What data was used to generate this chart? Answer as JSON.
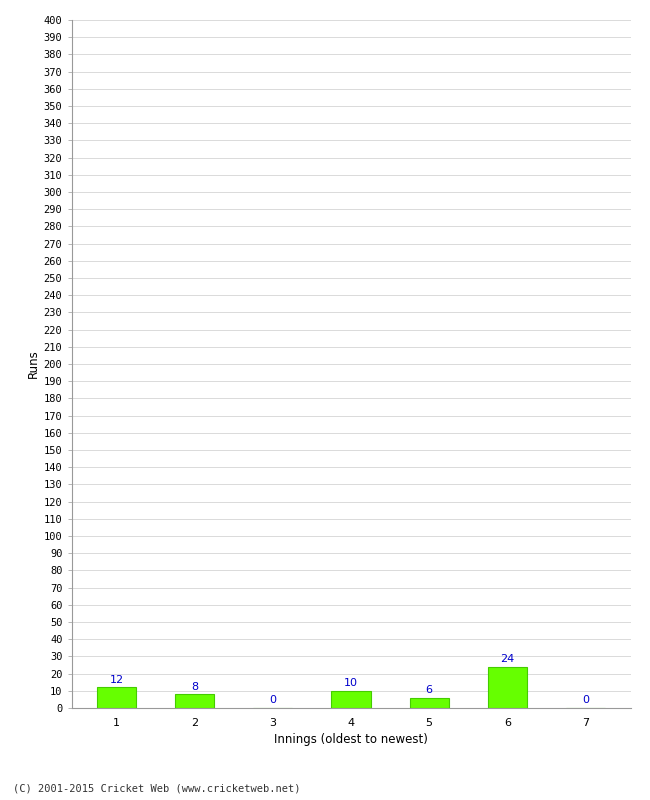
{
  "categories": [
    "1",
    "2",
    "3",
    "4",
    "5",
    "6",
    "7"
  ],
  "values": [
    12,
    8,
    0,
    10,
    6,
    24,
    0
  ],
  "bar_color": "#66ff00",
  "bar_edge_color": "#44cc00",
  "ylabel": "Runs",
  "xlabel": "Innings (oldest to newest)",
  "ylim": [
    0,
    400
  ],
  "label_color": "#0000cc",
  "footer": "(C) 2001-2015 Cricket Web (www.cricketweb.net)",
  "background_color": "#ffffff",
  "grid_color": "#cccccc",
  "tick_label_color": "#000000",
  "spine_color": "#999999"
}
